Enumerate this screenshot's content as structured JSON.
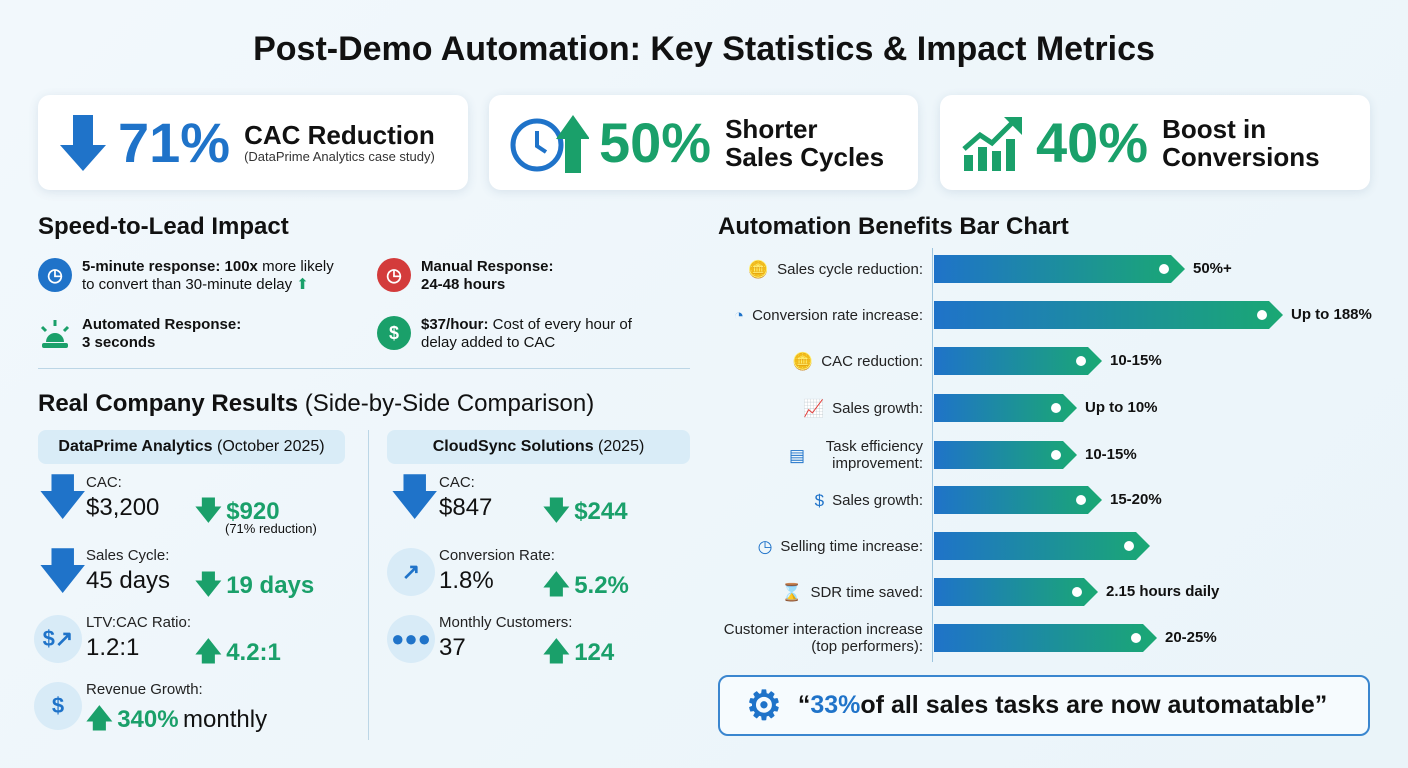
{
  "title": "Post-Demo Automation: Key Statistics & Impact Metrics",
  "cards": [
    {
      "value": "71%",
      "label": "CAC Reduction",
      "sub": "(DataPrime Analytics case study)",
      "icon": "arrow-down-icon",
      "color": "#1f73c9"
    },
    {
      "value": "50%",
      "label1": "Shorter",
      "label2": "Sales Cycles",
      "icon": "clock-arrow-up-icon",
      "color": "#1aa06a"
    },
    {
      "value": "40%",
      "label1": "Boost in",
      "label2": "Conversions",
      "icon": "growth-chart-icon",
      "color": "#1aa06a"
    }
  ],
  "speed": {
    "heading": "Speed-to-Lead Impact",
    "items": [
      {
        "bold": "5-minute response: 100x",
        "text": " more likely",
        "line2": "to convert than 30-minute delay",
        "icon": "clock-icon"
      },
      {
        "bold": "Manual Response:",
        "line2": "24-48 hours",
        "icon": "clock-alarm-icon"
      },
      {
        "bold": "Automated Response:",
        "line2": "3 seconds",
        "icon": "siren-icon"
      },
      {
        "bold": "$37/hour:",
        "text": " Cost of every hour of",
        "line2": "delay added to CAC",
        "icon": "dollar-icon"
      }
    ]
  },
  "results": {
    "heading": "Real Company Results",
    "heading_sub": "(Side-by-Side Comparison)",
    "left": {
      "name": "DataPrime Analytics",
      "period": "(October 2025)",
      "rows": [
        {
          "label": "CAC:",
          "before": "$3,200",
          "after": "$920",
          "note": "(71% reduction)",
          "dir": "down"
        },
        {
          "label": "Sales Cycle:",
          "before": "45 days",
          "after": "19 days",
          "dir": "down"
        },
        {
          "label": "LTV:CAC Ratio:",
          "before": "1.2:1",
          "after": "4.2:1",
          "dir": "up"
        },
        {
          "label": "Revenue Growth:",
          "after": "340%",
          "suffix": "monthly",
          "dir": "up"
        }
      ]
    },
    "right": {
      "name": "CloudSync Solutions",
      "period": "(2025)",
      "rows": [
        {
          "label": "CAC:",
          "before": "$847",
          "after": "$244",
          "dir": "down"
        },
        {
          "label": "Conversion Rate:",
          "before": "1.8%",
          "after": "5.2%",
          "dir": "up"
        },
        {
          "label": "Monthly Customers:",
          "before": "37",
          "after": "124",
          "dir": "up"
        }
      ]
    }
  },
  "chart_data": {
    "type": "bar",
    "title": "Automation Benefits Bar Chart",
    "orientation": "horizontal",
    "categories": [
      "Sales cycle reduction:",
      "Conversion rate increase:",
      "CAC reduction:",
      "Sales growth:",
      "Task efficiency improvement:",
      "Sales growth:",
      "Selling time increase:",
      "SDR time saved:",
      "Customer interaction increase (top performers):"
    ],
    "value_labels": [
      "50%+",
      "Up to 188%",
      "10-15%",
      "Up to 10%",
      "10-15%",
      "15-20%",
      "",
      "2.15 hours daily",
      "20-25%"
    ],
    "relative_length": [
      0.72,
      1.0,
      0.48,
      0.41,
      0.41,
      0.48,
      0.62,
      0.47,
      0.64
    ],
    "icons": [
      "coins-icon",
      "pie-chart-icon",
      "coins-icon",
      "bar-growth-icon",
      "document-icon",
      "hand-dollar-icon",
      "clock-icon",
      "hourglass-icon",
      ""
    ],
    "colors": [
      "#1f73c9",
      "#1aa873"
    ]
  },
  "quote": {
    "highlight": "33%",
    "text": " of all sales tasks are now automatable”",
    "open": "“"
  }
}
